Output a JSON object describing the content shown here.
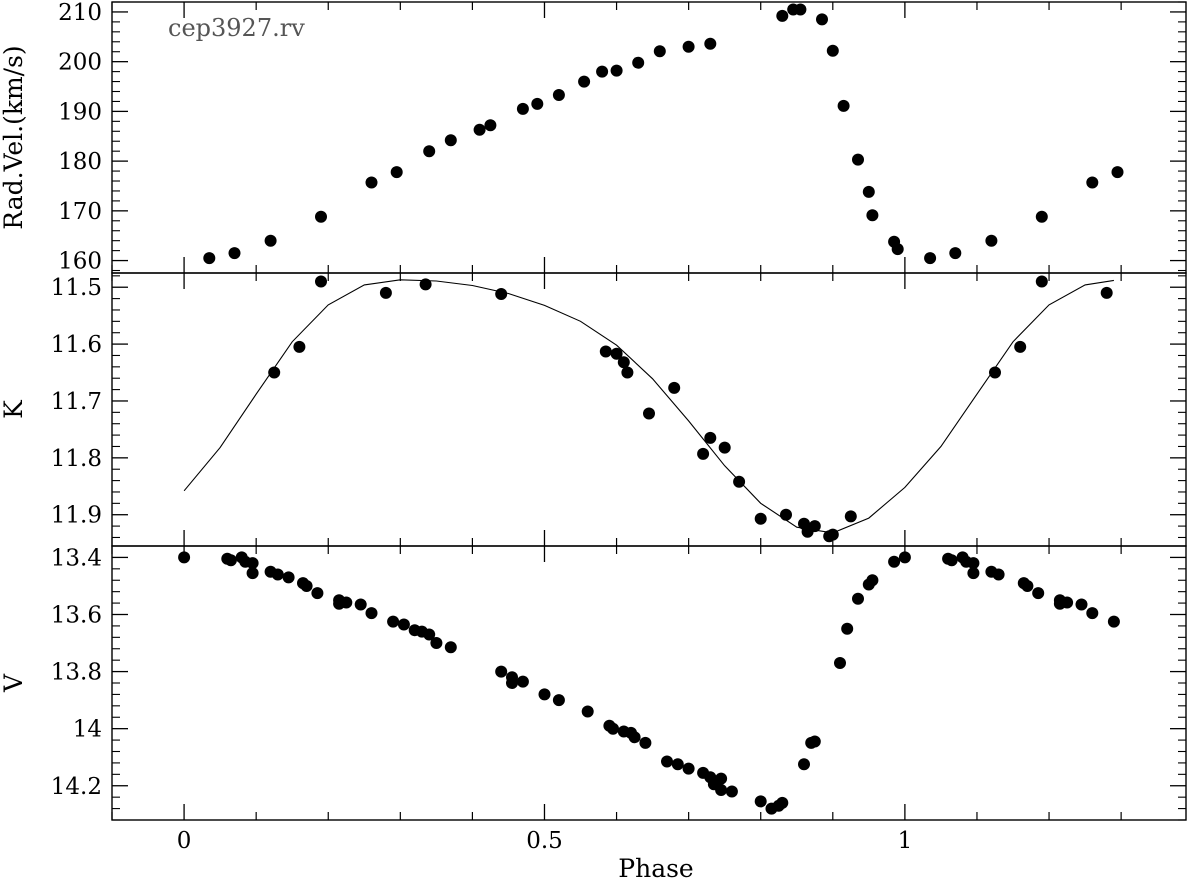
{
  "chart_data": {
    "type": "scatter",
    "annotation": "cep3927.rv",
    "xlabel": "Phase",
    "xlim": [
      -0.1,
      1.39
    ],
    "x_ticks": [
      0,
      0.5,
      1
    ],
    "x_tick_labels": [
      "0",
      "0.5",
      "1"
    ],
    "panels": [
      {
        "ylabel": "Rad.Vel.(km/s)",
        "ylim": [
          157.5,
          212
        ],
        "y_ticks": [
          160,
          170,
          180,
          190,
          200,
          210
        ],
        "y_tick_labels": [
          "160",
          "170",
          "180",
          "190",
          "200",
          "210"
        ],
        "points": [
          [
            0.035,
            160.5
          ],
          [
            0.07,
            161.5
          ],
          [
            0.12,
            164
          ],
          [
            0.19,
            168.8
          ],
          [
            0.26,
            175.7
          ],
          [
            0.295,
            177.8
          ],
          [
            0.34,
            182
          ],
          [
            0.37,
            184.2
          ],
          [
            0.41,
            186.3
          ],
          [
            0.425,
            187.2
          ],
          [
            0.47,
            190.5
          ],
          [
            0.49,
            191.5
          ],
          [
            0.52,
            193.3
          ],
          [
            0.555,
            196
          ],
          [
            0.58,
            198
          ],
          [
            0.6,
            198.2
          ],
          [
            0.63,
            199.8
          ],
          [
            0.66,
            202.1
          ],
          [
            0.7,
            203
          ],
          [
            0.73,
            203.6
          ],
          [
            0.83,
            209.2
          ],
          [
            0.845,
            210.5
          ],
          [
            0.855,
            210.5
          ],
          [
            0.885,
            208.5
          ],
          [
            0.9,
            202.2
          ],
          [
            0.915,
            191.1
          ],
          [
            0.935,
            180.3
          ],
          [
            0.95,
            173.8
          ],
          [
            0.955,
            169.1
          ],
          [
            0.985,
            163.8
          ],
          [
            0.99,
            162.3
          ],
          [
            1.035,
            160.5
          ],
          [
            1.07,
            161.5
          ],
          [
            1.12,
            164
          ],
          [
            1.19,
            168.8
          ],
          [
            1.26,
            175.7
          ],
          [
            1.295,
            177.8
          ]
        ]
      },
      {
        "ylabel": "K",
        "ylim": [
          11.955,
          11.475
        ],
        "y_ticks": [
          11.5,
          11.6,
          11.7,
          11.8,
          11.9
        ],
        "y_tick_labels": [
          "11.5",
          "11.6",
          "11.7",
          "11.8",
          "11.9"
        ],
        "points": [
          [
            0.125,
            11.65
          ],
          [
            0.16,
            11.605
          ],
          [
            0.19,
            11.49
          ],
          [
            0.28,
            11.51
          ],
          [
            0.335,
            11.495
          ],
          [
            0.44,
            11.512
          ],
          [
            0.585,
            11.613
          ],
          [
            0.6,
            11.617
          ],
          [
            0.61,
            11.632
          ],
          [
            0.615,
            11.65
          ],
          [
            0.645,
            11.722
          ],
          [
            0.68,
            11.677
          ],
          [
            0.72,
            11.793
          ],
          [
            0.73,
            11.765
          ],
          [
            0.75,
            11.782
          ],
          [
            0.77,
            11.842
          ],
          [
            0.8,
            11.907
          ],
          [
            0.835,
            11.9
          ],
          [
            0.86,
            11.916
          ],
          [
            0.865,
            11.93
          ],
          [
            0.875,
            11.92
          ],
          [
            0.895,
            11.938
          ],
          [
            0.9,
            11.935
          ],
          [
            0.925,
            11.903
          ],
          [
            1.125,
            11.65
          ],
          [
            1.16,
            11.605
          ],
          [
            1.19,
            11.49
          ],
          [
            1.28,
            11.51
          ]
        ],
        "curve": [
          [
            0.0,
            11.858
          ],
          [
            0.05,
            11.782
          ],
          [
            0.1,
            11.688
          ],
          [
            0.15,
            11.596
          ],
          [
            0.2,
            11.531
          ],
          [
            0.25,
            11.496
          ],
          [
            0.3,
            11.487
          ],
          [
            0.35,
            11.489
          ],
          [
            0.4,
            11.497
          ],
          [
            0.45,
            11.511
          ],
          [
            0.5,
            11.532
          ],
          [
            0.55,
            11.56
          ],
          [
            0.6,
            11.602
          ],
          [
            0.65,
            11.661
          ],
          [
            0.7,
            11.735
          ],
          [
            0.75,
            11.814
          ],
          [
            0.8,
            11.88
          ],
          [
            0.85,
            11.922
          ],
          [
            0.9,
            11.932
          ],
          [
            0.95,
            11.906
          ],
          [
            1.0,
            11.852
          ],
          [
            1.05,
            11.78
          ],
          [
            1.1,
            11.688
          ],
          [
            1.15,
            11.596
          ],
          [
            1.2,
            11.531
          ],
          [
            1.25,
            11.496
          ],
          [
            1.29,
            11.488
          ]
        ]
      },
      {
        "ylabel": "V",
        "ylim": [
          14.32,
          13.36
        ],
        "y_ticks": [
          13.4,
          13.6,
          13.8,
          14,
          14.2
        ],
        "y_tick_labels": [
          "13.4",
          "13.6",
          "13.8",
          "14",
          "14.2"
        ],
        "points": [
          [
            0.0,
            13.4
          ],
          [
            0.06,
            13.405
          ],
          [
            0.065,
            13.41
          ],
          [
            0.08,
            13.4
          ],
          [
            0.085,
            13.415
          ],
          [
            0.095,
            13.42
          ],
          [
            0.095,
            13.455
          ],
          [
            0.12,
            13.45
          ],
          [
            0.13,
            13.46
          ],
          [
            0.145,
            13.47
          ],
          [
            0.165,
            13.49
          ],
          [
            0.17,
            13.5
          ],
          [
            0.185,
            13.525
          ],
          [
            0.215,
            13.55
          ],
          [
            0.215,
            13.562
          ],
          [
            0.225,
            13.558
          ],
          [
            0.245,
            13.565
          ],
          [
            0.26,
            13.595
          ],
          [
            0.29,
            13.625
          ],
          [
            0.305,
            13.635
          ],
          [
            0.32,
            13.655
          ],
          [
            0.33,
            13.66
          ],
          [
            0.34,
            13.67
          ],
          [
            0.35,
            13.7
          ],
          [
            0.37,
            13.715
          ],
          [
            0.44,
            13.8
          ],
          [
            0.455,
            13.82
          ],
          [
            0.455,
            13.84
          ],
          [
            0.47,
            13.835
          ],
          [
            0.5,
            13.88
          ],
          [
            0.52,
            13.9
          ],
          [
            0.56,
            13.94
          ],
          [
            0.59,
            13.99
          ],
          [
            0.595,
            14.0
          ],
          [
            0.61,
            14.01
          ],
          [
            0.62,
            14.015
          ],
          [
            0.625,
            14.03
          ],
          [
            0.64,
            14.05
          ],
          [
            0.67,
            14.115
          ],
          [
            0.685,
            14.125
          ],
          [
            0.7,
            14.14
          ],
          [
            0.72,
            14.155
          ],
          [
            0.73,
            14.17
          ],
          [
            0.735,
            14.195
          ],
          [
            0.745,
            14.175
          ],
          [
            0.745,
            14.215
          ],
          [
            0.76,
            14.22
          ],
          [
            0.8,
            14.255
          ],
          [
            0.815,
            14.28
          ],
          [
            0.825,
            14.27
          ],
          [
            0.83,
            14.26
          ],
          [
            0.86,
            14.125
          ],
          [
            0.87,
            14.05
          ],
          [
            0.875,
            14.045
          ],
          [
            0.91,
            13.77
          ],
          [
            0.92,
            13.65
          ],
          [
            0.935,
            13.545
          ],
          [
            0.95,
            13.495
          ],
          [
            0.955,
            13.48
          ],
          [
            0.985,
            13.415
          ],
          [
            1.0,
            13.4
          ],
          [
            1.06,
            13.405
          ],
          [
            1.065,
            13.41
          ],
          [
            1.08,
            13.4
          ],
          [
            1.085,
            13.415
          ],
          [
            1.095,
            13.42
          ],
          [
            1.095,
            13.455
          ],
          [
            1.12,
            13.45
          ],
          [
            1.13,
            13.46
          ],
          [
            1.165,
            13.49
          ],
          [
            1.17,
            13.5
          ],
          [
            1.185,
            13.525
          ],
          [
            1.215,
            13.55
          ],
          [
            1.215,
            13.562
          ],
          [
            1.225,
            13.558
          ],
          [
            1.245,
            13.565
          ],
          [
            1.26,
            13.595
          ],
          [
            1.29,
            13.625
          ]
        ]
      }
    ]
  }
}
